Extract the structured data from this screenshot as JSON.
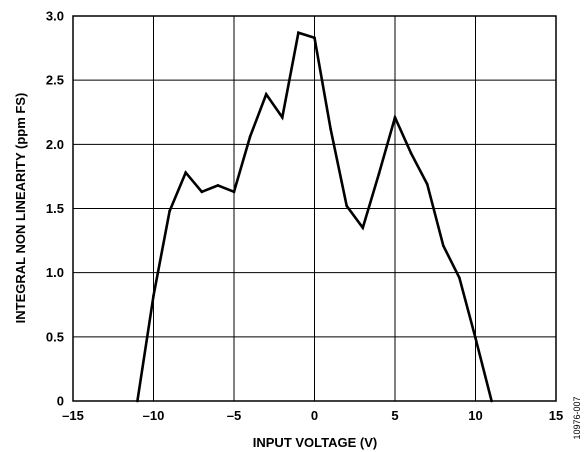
{
  "chart_data": {
    "type": "line",
    "xlabel": "INPUT VOLTAGE (V)",
    "ylabel": "INTEGRAL NON LINEARITY (ppm FS)",
    "xlim": [
      -15,
      15
    ],
    "ylim": [
      0,
      3.0
    ],
    "xticks": [
      -15,
      -10,
      -5,
      0,
      5,
      10,
      15
    ],
    "xtick_labels": [
      "–15",
      "–10",
      "–5",
      "0",
      "5",
      "10",
      "15"
    ],
    "yticks": [
      0,
      0.5,
      1.0,
      1.5,
      2.0,
      2.5,
      3.0
    ],
    "ytick_labels": [
      "0",
      "0.5",
      "1.0",
      "1.5",
      "2.0",
      "2.5",
      "3.0"
    ],
    "grid": true,
    "series": [
      {
        "color": "#000000",
        "x": [
          -11,
          -10,
          -9,
          -8,
          -7,
          -6,
          -5,
          -4,
          -3,
          -2,
          -1,
          0,
          1,
          2,
          3,
          4,
          5,
          6,
          7,
          8,
          9,
          10,
          11
        ],
        "y": [
          0,
          0.82,
          1.48,
          1.78,
          1.63,
          1.68,
          1.63,
          2.06,
          2.39,
          2.21,
          2.87,
          2.83,
          2.12,
          1.52,
          1.35,
          1.77,
          2.21,
          1.93,
          1.69,
          1.21,
          0.96,
          0.49,
          0
        ]
      }
    ]
  },
  "figure_code": "10976-007"
}
